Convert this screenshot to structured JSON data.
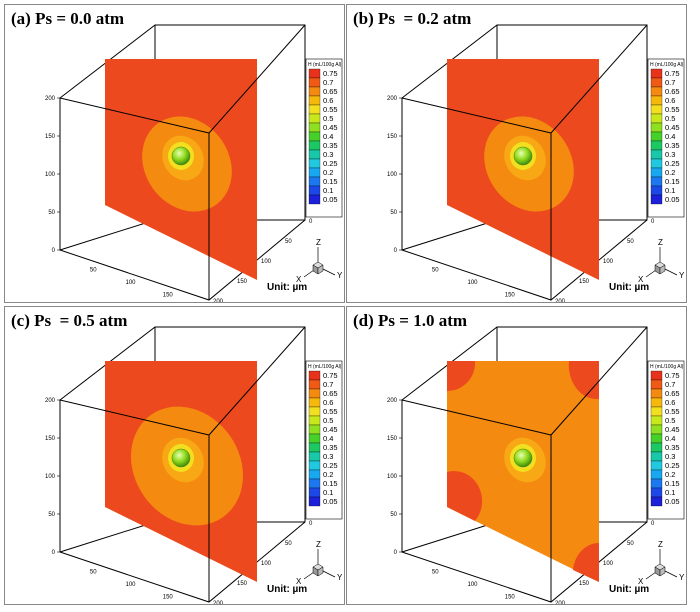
{
  "legend": {
    "title": "H (mL/100g Al)",
    "levels": [
      "0.75",
      "0.7",
      "0.65",
      "0.6",
      "0.55",
      "0.5",
      "0.45",
      "0.4",
      "0.35",
      "0.3",
      "0.25",
      "0.2",
      "0.15",
      "0.1",
      "0.05"
    ],
    "colors": [
      "#e8321c",
      "#f05a14",
      "#f58a10",
      "#f7b80c",
      "#f2e020",
      "#c8e81c",
      "#8ee020",
      "#46d02a",
      "#1cc864",
      "#18c8a8",
      "#20c8e0",
      "#18a8f0",
      "#1c78f0",
      "#1c48e8",
      "#1c20d8"
    ]
  },
  "axes": {
    "z_ticks": [
      "200",
      "150",
      "100",
      "50",
      "0"
    ],
    "x_ticks": [
      "50",
      "100",
      "150",
      "200"
    ],
    "y_ticks": [
      "0",
      "50",
      "100",
      "150",
      "200"
    ],
    "triad": {
      "z": "Z",
      "x": "X",
      "y": "Y"
    }
  },
  "unit_label": "Unit: µm",
  "colors": {
    "plane_red": "#ec4a1e",
    "contour_orange": "#f58a10",
    "contour_light": "#f7a814",
    "contour_yellow": "#f2e020",
    "sphere_green": "#8ed81c"
  },
  "panels": [
    {
      "title": "(a) Ps = 0.0 atm",
      "plane_fill": "plane_red",
      "corner_patches": false,
      "ellipse_scale": 1.0
    },
    {
      "title": "(b) Ps  = 0.2 atm",
      "plane_fill": "plane_red",
      "corner_patches": false,
      "ellipse_scale": 1.0
    },
    {
      "title": "(c) Ps  = 0.5 atm",
      "plane_fill": "plane_red",
      "corner_patches": false,
      "ellipse_scale": 1.25
    },
    {
      "title": "(d) Ps = 1.0 atm",
      "plane_fill": "contour_orange",
      "corner_patches": true,
      "ellipse_scale": 0.55
    }
  ]
}
